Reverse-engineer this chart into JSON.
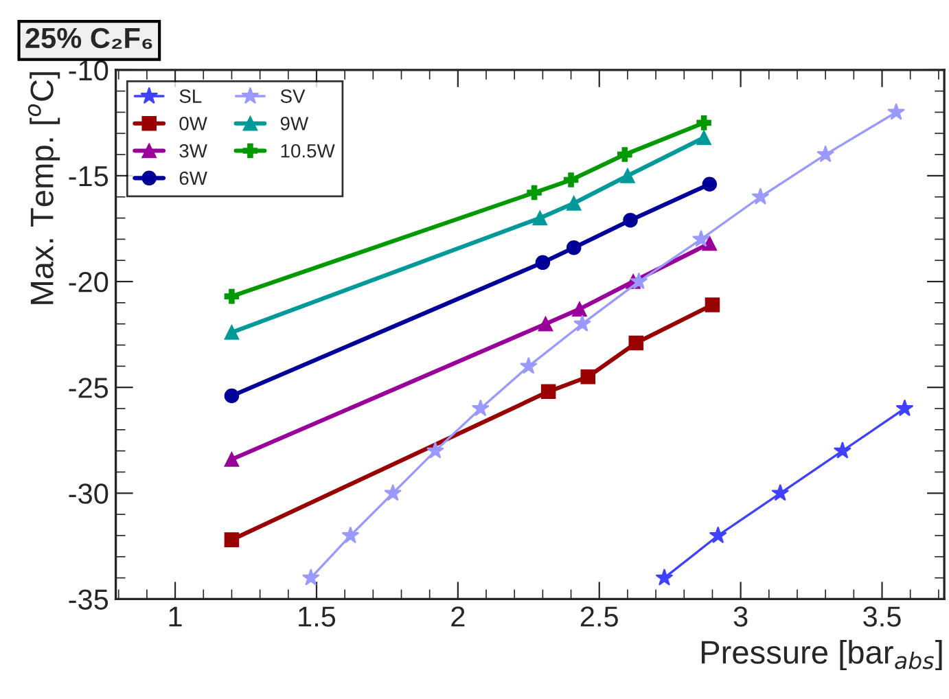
{
  "chart_data": {
    "type": "line",
    "title": "25% C₂F₆",
    "xlabel": "Pressure [bar$_{abs}$]",
    "ylabel": "Max. Temp. [$^{o}$C]",
    "xlim": [
      0.79,
      3.72
    ],
    "ylim": [
      -35,
      -10
    ],
    "xticks": [
      1,
      1.5,
      2,
      2.5,
      3,
      3.5
    ],
    "yticks": [
      -35,
      -30,
      -25,
      -20,
      -15,
      -10
    ],
    "grid": false,
    "legend": "top left",
    "series": [
      {
        "name": "SL",
        "color": "#4040ff",
        "marker": "star",
        "x": [
          2.73,
          2.92,
          3.14,
          3.36,
          3.58
        ],
        "values": [
          -34,
          -32,
          -30,
          -28,
          -26
        ]
      },
      {
        "name": "0W",
        "color": "#990000",
        "marker": "square",
        "x": [
          1.2,
          2.32,
          2.46,
          2.63,
          2.9
        ],
        "values": [
          -32.2,
          -25.2,
          -24.5,
          -22.9,
          -21.1
        ]
      },
      {
        "name": "3W",
        "color": "#990099",
        "marker": "triangle",
        "x": [
          1.2,
          2.31,
          2.43,
          2.62,
          2.89
        ],
        "values": [
          -28.4,
          -22.0,
          -21.3,
          -20.0,
          -18.2
        ]
      },
      {
        "name": "6W",
        "color": "#000099",
        "marker": "circle",
        "x": [
          1.2,
          2.3,
          2.41,
          2.61,
          2.89
        ],
        "values": [
          -25.4,
          -19.1,
          -18.4,
          -17.1,
          -15.4
        ]
      },
      {
        "name": "SV",
        "color": "#9999ff",
        "marker": "star",
        "x": [
          1.48,
          1.62,
          1.77,
          1.92,
          2.08,
          2.25,
          2.44,
          2.64,
          2.86,
          3.07,
          3.3,
          3.55
        ],
        "values": [
          -34,
          -32,
          -30,
          -28,
          -26,
          -24,
          -22,
          -20,
          -18,
          -16,
          -14,
          -12
        ]
      },
      {
        "name": "9W",
        "color": "#009999",
        "marker": "triangle",
        "x": [
          1.2,
          2.29,
          2.41,
          2.6,
          2.87
        ],
        "values": [
          -22.4,
          -17.0,
          -16.3,
          -15.0,
          -13.2
        ]
      },
      {
        "name": "10.5W",
        "color": "#009900",
        "marker": "cross",
        "x": [
          1.2,
          2.27,
          2.4,
          2.59,
          2.87
        ],
        "values": [
          -20.7,
          -15.8,
          -15.2,
          -14.0,
          -12.5
        ]
      }
    ]
  }
}
